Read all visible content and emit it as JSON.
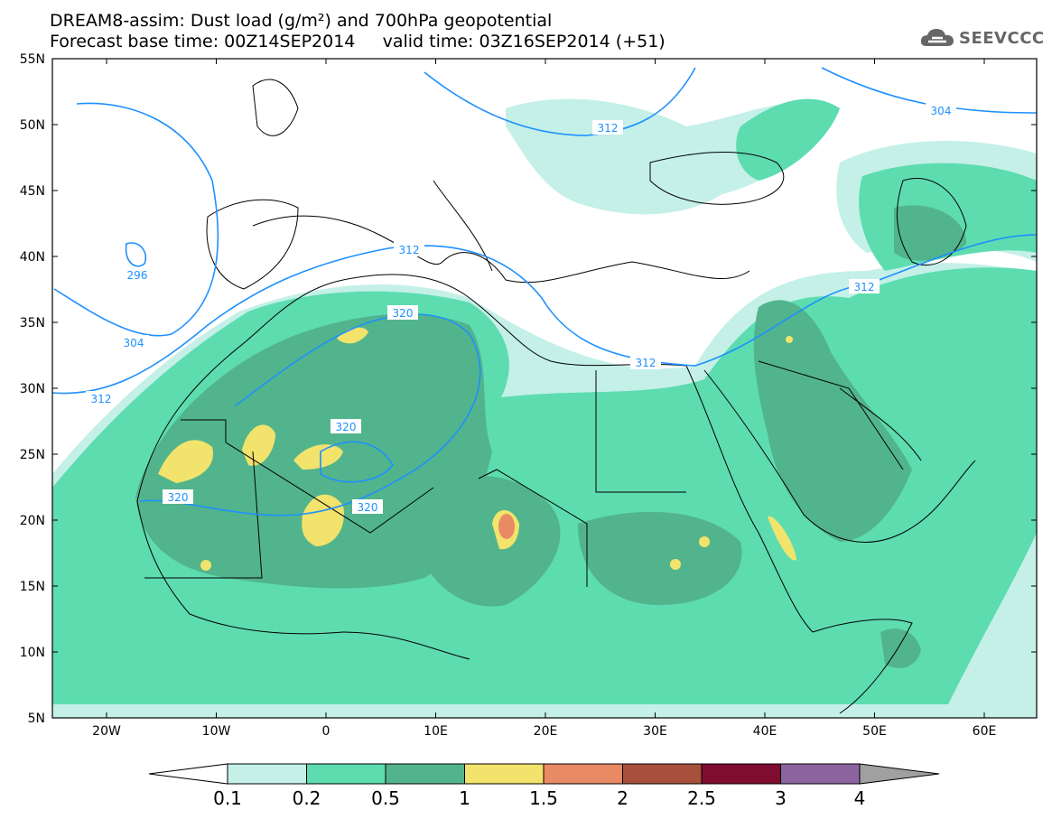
{
  "title_line1": "DREAM8-assim: Dust load (g/m²) and 700hPa geopotential",
  "title_line2": "Forecast base time: 00Z14SEP2014     valid time: 03Z16SEP2014 (+51)",
  "logo_text": "SEEVCCC",
  "lat_labels": [
    "55N",
    "50N",
    "45N",
    "40N",
    "35N",
    "30N",
    "25N",
    "20N",
    "15N",
    "10N",
    "5N"
  ],
  "lon_labels": [
    "20W",
    "10W",
    "0",
    "10E",
    "20E",
    "30E",
    "40E",
    "50E",
    "60E"
  ],
  "contour_labels": [
    "312",
    "304",
    "296",
    "304",
    "312",
    "312",
    "320",
    "320",
    "320",
    "312",
    "312",
    "304"
  ],
  "colorbar": {
    "ticks": [
      "0.1",
      "0.2",
      "0.5",
      "1",
      "1.5",
      "2",
      "2.5",
      "3",
      "4"
    ],
    "colors": [
      "#c4f0e8",
      "#5ddcb0",
      "#52b48c",
      "#f2e36c",
      "#e88a64",
      "#a8503c",
      "#800c30",
      "#8c64a0"
    ],
    "under_color": "#ffffff",
    "over_color": "#a0a0a0"
  },
  "colors": {
    "contour": "#1e90ff",
    "coast": "#000000"
  }
}
